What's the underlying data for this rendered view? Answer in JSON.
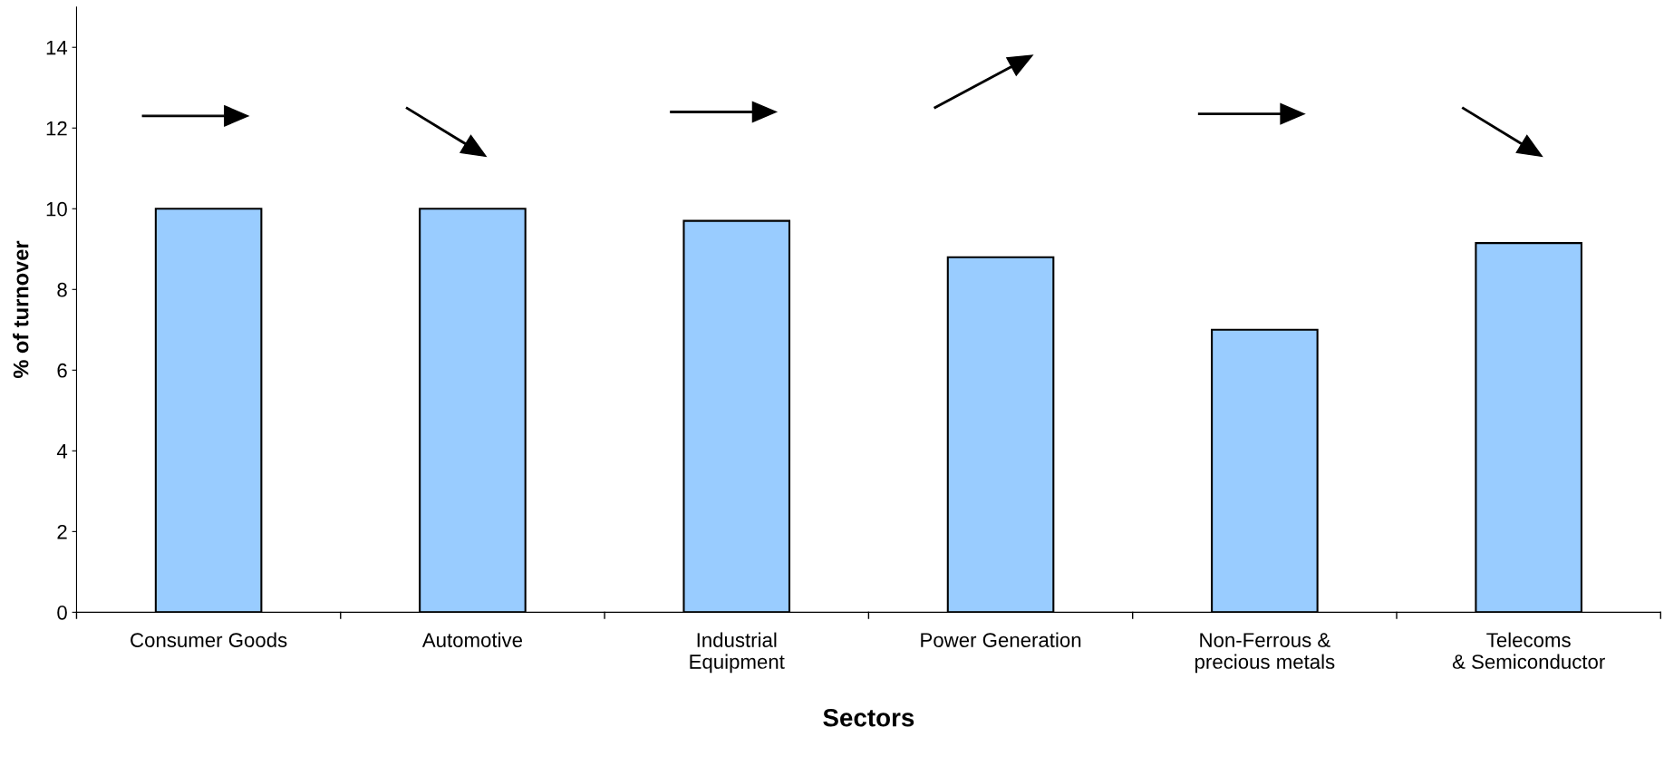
{
  "chart_data": {
    "type": "bar",
    "xlabel": "Sectors",
    "ylabel": "% of turnover",
    "categories": [
      "Consumer Goods",
      "Automotive",
      "Industrial\nEquipment",
      "Power Generation",
      "Non-Ferrous &\nprecious metals",
      "Telecoms\n& Semiconductor"
    ],
    "values": [
      10,
      10,
      9.7,
      8.8,
      7.0,
      9.15
    ],
    "color": "#99ccff",
    "ylim": [
      0,
      15
    ],
    "yticks": [
      0,
      2,
      4,
      6,
      8,
      10,
      12,
      14
    ],
    "grid": false,
    "legend": false
  }
}
